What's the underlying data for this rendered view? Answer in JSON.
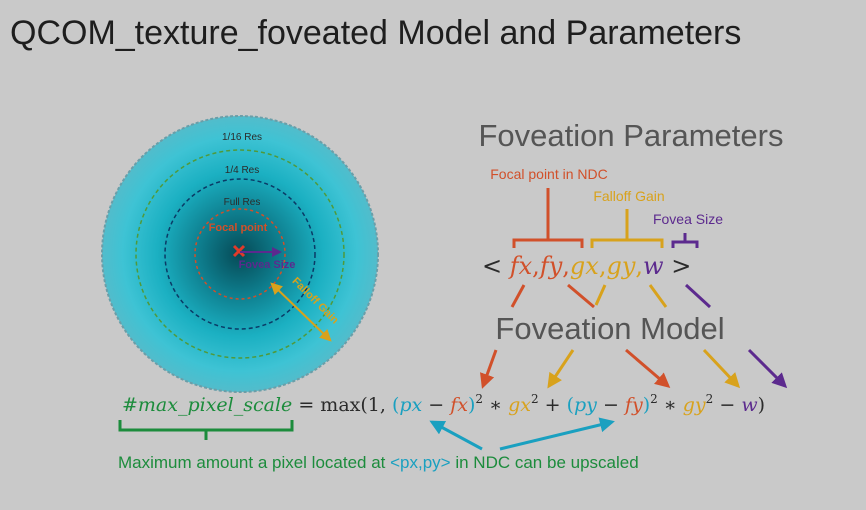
{
  "title": "QCOM_texture_foveated Model and Parameters",
  "colors": {
    "background": "#c9c9c9",
    "orange": "#d1502a",
    "gold": "#d8a21c",
    "purple": "#5c2a8e",
    "teal": "#1aa0c0",
    "green": "#1c8c3c",
    "dark": "#2b2b2b"
  },
  "circle": {
    "ring_labels": {
      "outer": "1/16 Res",
      "mid": "1/4 Res",
      "inner": "Full Res"
    },
    "focal_point_label": "Focal point",
    "fovea_size_label": "Fovea Size",
    "falloff_gain_label": "Falloff Gain"
  },
  "parameters": {
    "heading": "Foveation Parameters",
    "focal_point_label": "Focal point in NDC",
    "falloff_gain_label": "Falloff Gain",
    "fovea_size_label": "Fovea Size",
    "tuple": {
      "open": "< ",
      "fx": "fx",
      "fy": "fy",
      "gx": "gx",
      "gy": "gy",
      "w": "w",
      "comma": ",",
      "close": " >"
    }
  },
  "model": {
    "heading": "Foveation Model",
    "formula": {
      "lhs": "#max_pixel_scale",
      "eq": " = max(1, ",
      "lparen": "(",
      "px": "px",
      "minus": " − ",
      "fx": "fx",
      "rparen": ")",
      "sq": "2",
      "times": " ∗ ",
      "gx": "gx",
      "plus": " + ",
      "py": "py",
      "fy": "fy",
      "gy": "gy",
      "w": "w",
      "close": ")"
    },
    "caption_before": "Maximum amount a pixel located at ",
    "caption_coord": "<px,py>",
    "caption_after": " in NDC can be upscaled"
  }
}
